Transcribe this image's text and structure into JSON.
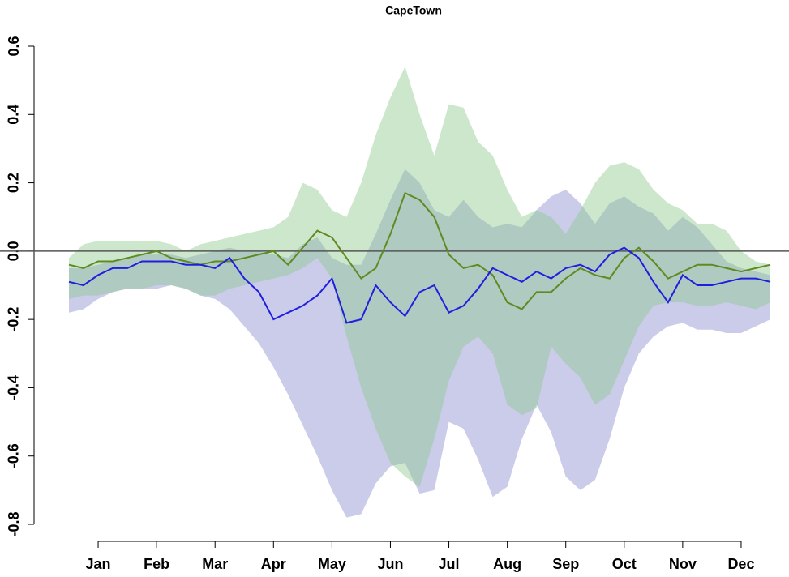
{
  "chart_data": {
    "type": "line",
    "title": "CapeTown",
    "x": [
      0.5,
      0.75,
      1,
      1.25,
      1.5,
      1.75,
      2,
      2.25,
      2.5,
      2.75,
      3,
      3.25,
      3.5,
      3.75,
      4,
      4.25,
      4.5,
      4.75,
      5,
      5.25,
      5.5,
      5.75,
      6,
      6.25,
      6.5,
      6.75,
      7,
      7.25,
      7.5,
      7.75,
      8,
      8.25,
      8.5,
      8.75,
      9,
      9.25,
      9.5,
      9.75,
      10,
      10.25,
      10.5,
      10.75,
      11,
      11.25,
      11.5,
      11.75,
      12,
      12.25,
      12.5
    ],
    "xlim": [
      0.5,
      12.5
    ],
    "xticks": [
      {
        "value": 1,
        "label": "Jan"
      },
      {
        "value": 2,
        "label": "Feb"
      },
      {
        "value": 3,
        "label": "Mar"
      },
      {
        "value": 4,
        "label": "Apr"
      },
      {
        "value": 5,
        "label": "May"
      },
      {
        "value": 6,
        "label": "Jun"
      },
      {
        "value": 7,
        "label": "Jul"
      },
      {
        "value": 8,
        "label": "Aug"
      },
      {
        "value": 9,
        "label": "Sep"
      },
      {
        "value": 10,
        "label": "Oct"
      },
      {
        "value": 11,
        "label": "Nov"
      },
      {
        "value": 12,
        "label": "Dec"
      }
    ],
    "ylim": [
      -0.8,
      0.6
    ],
    "yticks": [
      -0.8,
      -0.6,
      -0.4,
      -0.2,
      {
        "value": 0,
        "label": "0.0"
      },
      0.2,
      0.4,
      0.6
    ],
    "hline": 0,
    "series": [
      {
        "color": "#1f1fe0",
        "band_color": "#8c8cd0",
        "values": [
          -0.09,
          -0.1,
          -0.07,
          -0.05,
          -0.05,
          -0.03,
          -0.03,
          -0.03,
          -0.04,
          -0.04,
          -0.05,
          -0.02,
          -0.08,
          -0.12,
          -0.2,
          -0.18,
          -0.16,
          -0.13,
          -0.08,
          -0.21,
          -0.2,
          -0.1,
          -0.15,
          -0.19,
          -0.12,
          -0.1,
          -0.18,
          -0.16,
          -0.11,
          -0.05,
          -0.07,
          -0.09,
          -0.06,
          -0.08,
          -0.05,
          -0.04,
          -0.06,
          -0.01,
          0.01,
          -0.02,
          -0.09,
          -0.15,
          -0.07,
          -0.1,
          -0.1,
          -0.09,
          -0.08,
          -0.08,
          -0.09
        ],
        "band_upper": [
          -0.05,
          -0.05,
          -0.04,
          -0.03,
          -0.02,
          -0.01,
          -0.01,
          -0.01,
          -0.02,
          -0.01,
          0.0,
          0.01,
          0.0,
          0.0,
          -0.01,
          -0.02,
          0.02,
          0.04,
          -0.02,
          -0.04,
          -0.04,
          0.05,
          0.15,
          0.24,
          0.2,
          0.12,
          0.1,
          0.15,
          0.1,
          0.07,
          0.08,
          0.07,
          0.12,
          0.16,
          0.18,
          0.14,
          0.08,
          0.14,
          0.16,
          0.13,
          0.11,
          0.06,
          0.1,
          0.07,
          0.02,
          -0.03,
          -0.05,
          -0.06,
          -0.07
        ],
        "band_lower": [
          -0.18,
          -0.17,
          -0.14,
          -0.12,
          -0.11,
          -0.11,
          -0.11,
          -0.1,
          -0.11,
          -0.13,
          -0.14,
          -0.17,
          -0.22,
          -0.27,
          -0.34,
          -0.42,
          -0.51,
          -0.6,
          -0.7,
          -0.78,
          -0.77,
          -0.68,
          -0.63,
          -0.62,
          -0.71,
          -0.7,
          -0.5,
          -0.52,
          -0.61,
          -0.72,
          -0.69,
          -0.55,
          -0.45,
          -0.53,
          -0.66,
          -0.7,
          -0.67,
          -0.55,
          -0.4,
          -0.3,
          -0.25,
          -0.22,
          -0.21,
          -0.23,
          -0.23,
          -0.24,
          -0.24,
          -0.22,
          -0.2
        ]
      },
      {
        "color": "#5f8a1f",
        "band_color": "#8fca8f",
        "values": [
          -0.04,
          -0.05,
          -0.03,
          -0.03,
          -0.02,
          -0.01,
          0.0,
          -0.02,
          -0.03,
          -0.04,
          -0.03,
          -0.03,
          -0.02,
          -0.01,
          0.0,
          -0.04,
          0.01,
          0.06,
          0.04,
          -0.02,
          -0.08,
          -0.05,
          0.05,
          0.17,
          0.15,
          0.1,
          -0.01,
          -0.05,
          -0.04,
          -0.07,
          -0.15,
          -0.17,
          -0.12,
          -0.12,
          -0.08,
          -0.05,
          -0.07,
          -0.08,
          -0.02,
          0.01,
          -0.03,
          -0.08,
          -0.06,
          -0.04,
          -0.04,
          -0.05,
          -0.06,
          -0.05,
          -0.04
        ],
        "band_upper": [
          -0.02,
          0.02,
          0.03,
          0.03,
          0.03,
          0.03,
          0.03,
          0.02,
          0.0,
          0.02,
          0.03,
          0.04,
          0.05,
          0.06,
          0.07,
          0.1,
          0.2,
          0.18,
          0.12,
          0.1,
          0.2,
          0.34,
          0.45,
          0.54,
          0.4,
          0.28,
          0.43,
          0.42,
          0.32,
          0.28,
          0.18,
          0.1,
          0.12,
          0.1,
          0.05,
          0.12,
          0.2,
          0.25,
          0.26,
          0.24,
          0.18,
          0.14,
          0.12,
          0.08,
          0.08,
          0.06,
          0.0,
          -0.03,
          -0.04
        ],
        "band_lower": [
          -0.14,
          -0.13,
          -0.13,
          -0.12,
          -0.11,
          -0.11,
          -0.1,
          -0.1,
          -0.11,
          -0.13,
          -0.13,
          -0.11,
          -0.1,
          -0.09,
          -0.08,
          -0.07,
          -0.05,
          -0.02,
          -0.08,
          -0.25,
          -0.4,
          -0.52,
          -0.62,
          -0.66,
          -0.69,
          -0.55,
          -0.38,
          -0.28,
          -0.25,
          -0.3,
          -0.45,
          -0.48,
          -0.46,
          -0.28,
          -0.33,
          -0.37,
          -0.45,
          -0.42,
          -0.32,
          -0.22,
          -0.16,
          -0.15,
          -0.15,
          -0.16,
          -0.16,
          -0.15,
          -0.16,
          -0.17,
          -0.15
        ]
      }
    ]
  }
}
